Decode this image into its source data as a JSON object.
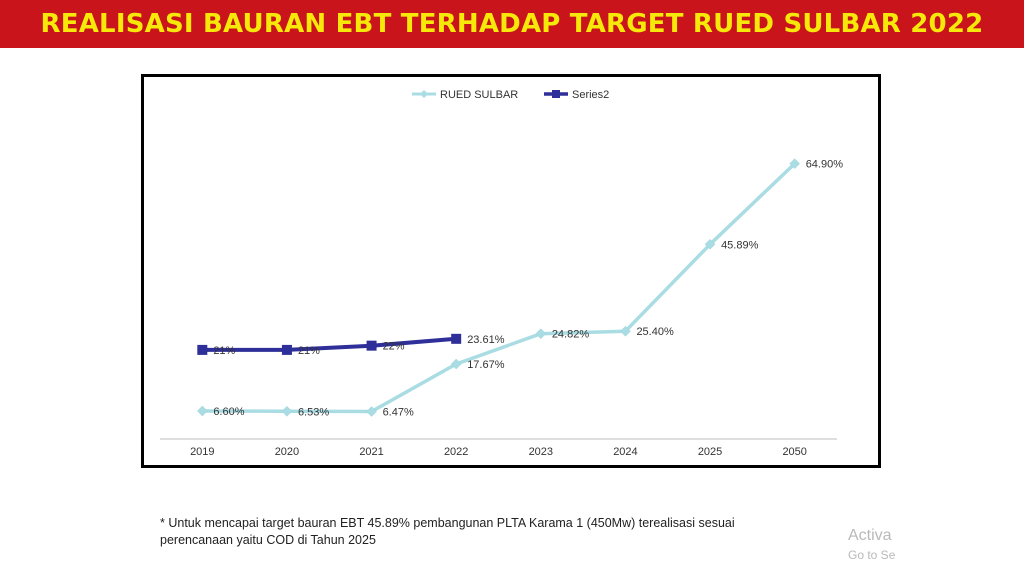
{
  "title": "REALISASI BAURAN EBT TERHADAP TARGET RUED SULBAR 2022",
  "footnote": {
    "line1": "* Untuk mencapai target bauran EBT 45.89%  pembangunan PLTA Karama 1 (450Mw) terealisasi sesuai",
    "line2": "perencanaan yaitu COD di Tahun 2025"
  },
  "watermark": {
    "line1": "Activa",
    "line2": "Go to Se"
  },
  "chart_data": {
    "type": "line",
    "categories": [
      "2019",
      "2020",
      "2021",
      "2022",
      "2023",
      "2024",
      "2025",
      "2050"
    ],
    "ylim": [
      0,
      70
    ],
    "grid": false,
    "legend_position": "top",
    "series": [
      {
        "name": "RUED SULBAR",
        "color": "#a9dce3",
        "marker": "diamond",
        "values": [
          6.6,
          6.53,
          6.47,
          17.67,
          24.82,
          25.4,
          45.89,
          64.9
        ],
        "labels": [
          "6.60%",
          "6.53%",
          "6.47%",
          "17.67%",
          "24.82%",
          "25.40%",
          "45.89%",
          "64.90%"
        ]
      },
      {
        "name": "Series2",
        "color": "#2e2f99",
        "marker": "square",
        "values": [
          21,
          21,
          22,
          23.61,
          null,
          null,
          null,
          null
        ],
        "labels": [
          "21%",
          "21%",
          "22%",
          "23.61%",
          null,
          null,
          null,
          null
        ]
      }
    ]
  }
}
